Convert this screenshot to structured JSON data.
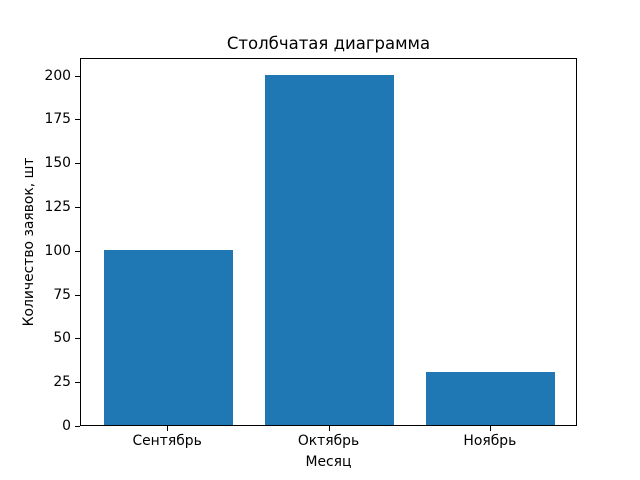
{
  "chart_data": {
    "type": "bar",
    "title": "Столбчатая диаграмма",
    "xlabel": "Месяц",
    "ylabel": "Количество заявок, шт",
    "categories": [
      "Сентябрь",
      "Октябрь",
      "Ноябрь"
    ],
    "values": [
      100,
      200,
      30
    ],
    "yticks": [
      0,
      25,
      50,
      75,
      100,
      125,
      150,
      175,
      200
    ],
    "ylim": [
      0,
      210
    ],
    "bar_color": "#1f77b4",
    "grid": false,
    "legend_position": "none",
    "background_color": "#ffffff",
    "axis_color": "#000000"
  }
}
